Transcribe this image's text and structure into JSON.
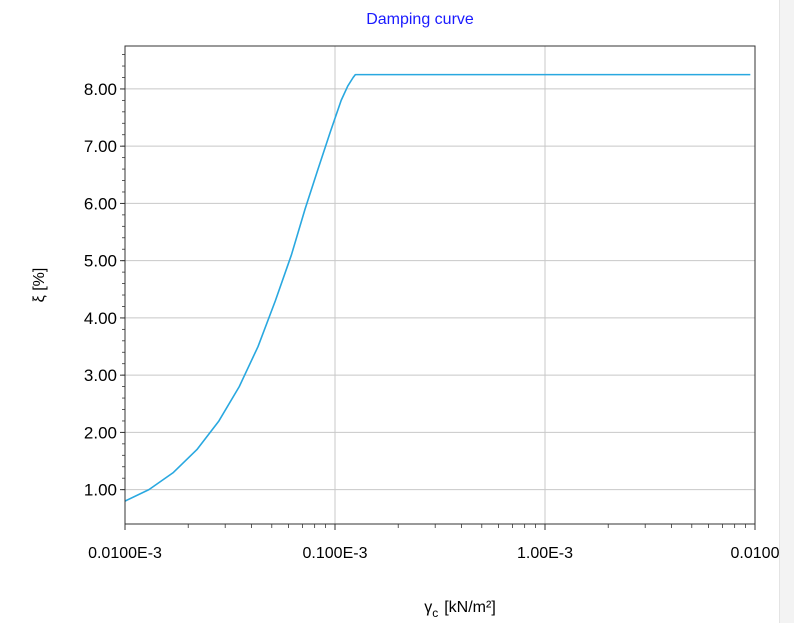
{
  "chart_data": {
    "type": "line",
    "title": "Damping curve",
    "ylabel": "ξ [%]",
    "xlabel_main": "γ",
    "xlabel_sub": "c",
    "xlabel_unit": "[kN/m²]",
    "xscale": "log",
    "xlim": [
      1e-05,
      0.01
    ],
    "ylim": [
      0.4,
      8.75
    ],
    "grid": true,
    "xticks": [
      {
        "value": 1e-05,
        "label": "0.0100E-3"
      },
      {
        "value": 0.0001,
        "label": "0.100E-3"
      },
      {
        "value": 0.001,
        "label": "1.00E-3"
      },
      {
        "value": 0.01,
        "label": "0.0100"
      }
    ],
    "yticks": [
      {
        "value": 1,
        "label": "1.00"
      },
      {
        "value": 2,
        "label": "2.00"
      },
      {
        "value": 3,
        "label": "3.00"
      },
      {
        "value": 4,
        "label": "4.00"
      },
      {
        "value": 5,
        "label": "5.00"
      },
      {
        "value": 6,
        "label": "6.00"
      },
      {
        "value": 7,
        "label": "7.00"
      },
      {
        "value": 8,
        "label": "8.00"
      }
    ],
    "series": [
      {
        "color": "#29a8e0",
        "x": [
          1e-05,
          1.3e-05,
          1.7e-05,
          2.2e-05,
          2.8e-05,
          3.5e-05,
          4.3e-05,
          5.2e-05,
          6.2e-05,
          7.2e-05,
          8.3e-05,
          9.5e-05,
          0.000107,
          0.000115,
          0.000122,
          0.000125,
          0.00015,
          0.0003,
          0.001,
          0.003,
          0.0095
        ],
        "y": [
          0.8,
          1.0,
          1.3,
          1.7,
          2.2,
          2.8,
          3.5,
          4.3,
          5.1,
          5.9,
          6.6,
          7.25,
          7.8,
          8.05,
          8.2,
          8.25,
          8.25,
          8.25,
          8.25,
          8.25,
          8.25
        ]
      }
    ]
  }
}
